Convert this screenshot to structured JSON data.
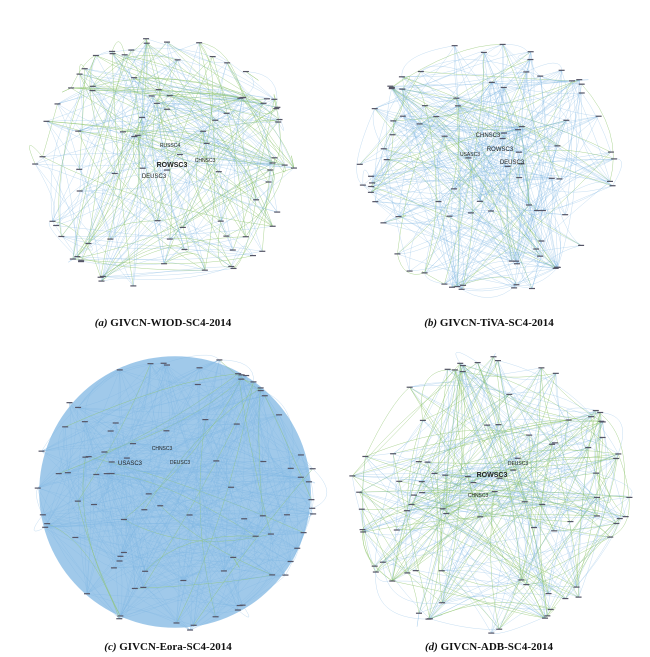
{
  "panels": [
    {
      "label": "(a)",
      "title": "GIVCN-WIOD-SC4-2014",
      "nodes": [
        "ROWSC3",
        "DEUSC3",
        "CHNSC3",
        "RUSSC4"
      ]
    },
    {
      "label": "(b)",
      "title": "GIVCN-TiVA-SC4-2014",
      "nodes": [
        "CHNSC3",
        "ROWSC3",
        "DEUSC3",
        "USASC3"
      ]
    },
    {
      "label": "(c)",
      "title": "GIVCN-Eora-SC4-2014",
      "nodes": [
        "USASC3",
        "CHNSC3",
        "DEUSC3"
      ]
    },
    {
      "label": "(d)",
      "title": "GIVCN-ADB-SC4-2014",
      "nodes": [
        "ROWSC3",
        "DEUSC3",
        "CHNSC3"
      ]
    }
  ]
}
